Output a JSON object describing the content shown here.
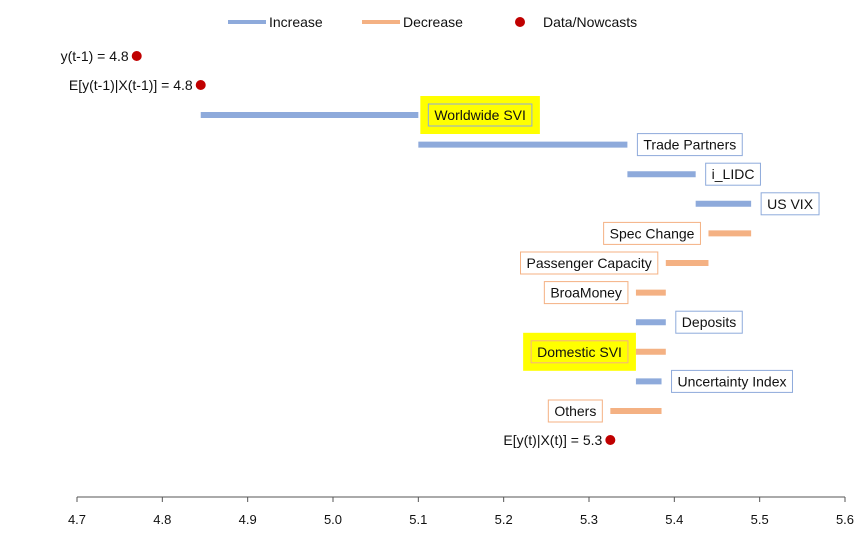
{
  "chart_data": {
    "type": "waterfall",
    "legend": [
      {
        "name": "Increase",
        "color": "#8eaadb",
        "kind": "line"
      },
      {
        "name": "Decrease",
        "color": "#f4b183",
        "kind": "line"
      },
      {
        "name": "Data/Nowcasts",
        "color": "#c00000",
        "kind": "dot"
      }
    ],
    "xlim": [
      4.7,
      5.6
    ],
    "xticks": [
      4.7,
      4.8,
      4.9,
      5.0,
      5.1,
      5.2,
      5.3,
      5.4,
      5.5,
      5.6
    ],
    "xtick_labels": [
      "4.7",
      "4.8",
      "4.9",
      "5.0",
      "5.1",
      "5.2",
      "5.3",
      "5.4",
      "5.5",
      "5.6"
    ],
    "points": [
      {
        "label": "y(t-1) = 4.8",
        "x": 4.77
      },
      {
        "label": "E[y(t-1)|X(t-1)] = 4.8",
        "x": 4.845
      },
      {
        "label": "E[y(t)|X(t)] = 5.3",
        "x": 5.325
      }
    ],
    "bars": [
      {
        "label": "Worldwide SVI",
        "start": 4.845,
        "end": 5.1,
        "type": "increase",
        "highlight": true,
        "label_side": "right"
      },
      {
        "label": "Trade Partners",
        "start": 5.1,
        "end": 5.345,
        "type": "increase",
        "highlight": false,
        "label_side": "right"
      },
      {
        "label": "i_LIDC",
        "start": 5.345,
        "end": 5.425,
        "type": "increase",
        "highlight": false,
        "label_side": "right"
      },
      {
        "label": "US VIX",
        "start": 5.425,
        "end": 5.49,
        "type": "increase",
        "highlight": false,
        "label_side": "right"
      },
      {
        "label": "Spec Change",
        "start": 5.49,
        "end": 5.44,
        "type": "decrease",
        "highlight": false,
        "label_side": "left"
      },
      {
        "label": "Passenger Capacity",
        "start": 5.44,
        "end": 5.39,
        "type": "decrease",
        "highlight": false,
        "label_side": "left"
      },
      {
        "label": "BroaMoney",
        "start": 5.39,
        "end": 5.355,
        "type": "decrease",
        "highlight": false,
        "label_side": "left"
      },
      {
        "label": "Deposits",
        "start": 5.355,
        "end": 5.39,
        "type": "increase",
        "highlight": false,
        "label_side": "right"
      },
      {
        "label": "Domestic SVI",
        "start": 5.39,
        "end": 5.355,
        "type": "decrease",
        "highlight": true,
        "label_side": "left"
      },
      {
        "label": "Uncertainty Index",
        "start": 5.355,
        "end": 5.385,
        "type": "increase",
        "highlight": false,
        "label_side": "right"
      },
      {
        "label": "Others",
        "start": 5.385,
        "end": 5.325,
        "type": "decrease",
        "highlight": false,
        "label_side": "left"
      }
    ],
    "colors": {
      "increase": "#8eaadb",
      "decrease": "#f4b183",
      "dot": "#c00000",
      "highlight": "#ffff00",
      "axis": "#555555"
    }
  }
}
